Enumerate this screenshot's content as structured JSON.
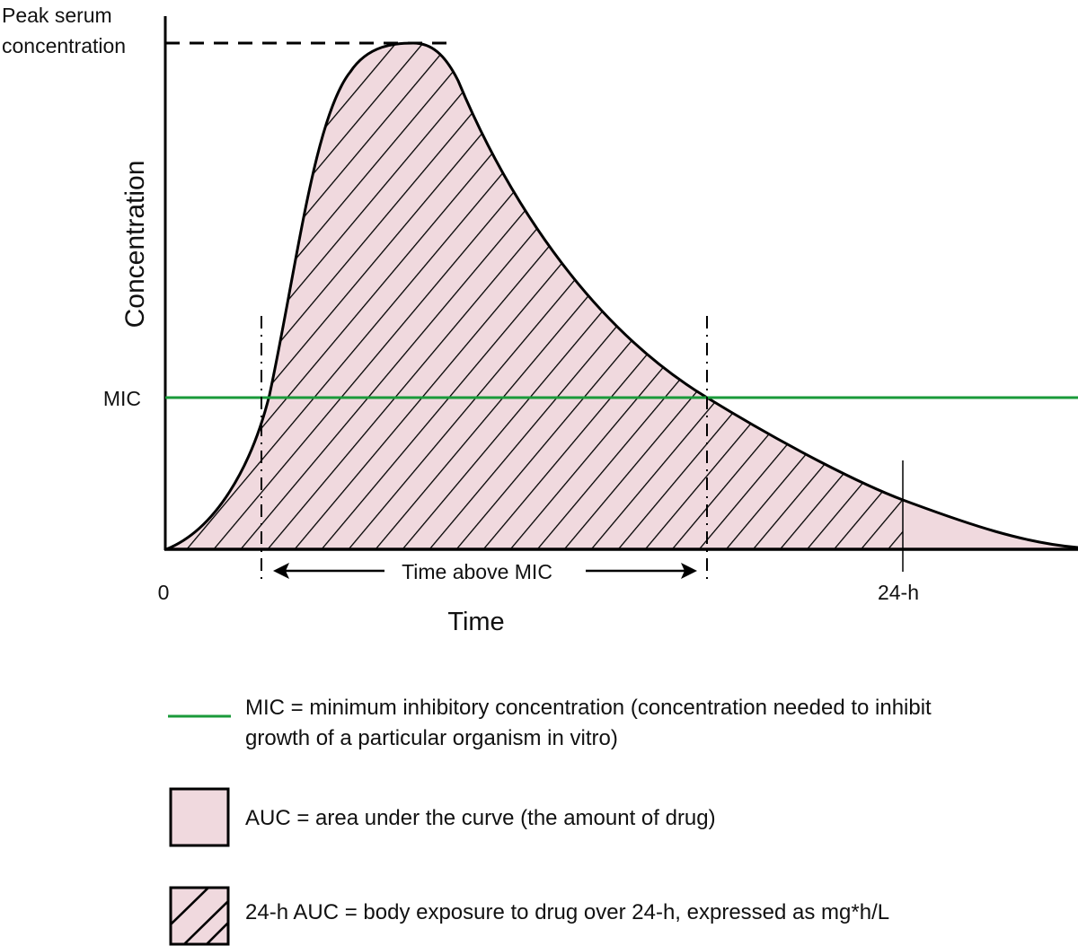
{
  "diagram": {
    "peak_label_line1": "Peak serum",
    "peak_label_line2": "concentration",
    "y_axis_label": "Concentration",
    "x_axis_label": "Time",
    "mic_label": "MIC",
    "origin_label": "0",
    "tick_24h_label": "24-h",
    "time_above_mic_label": "Time above MIC"
  },
  "colors": {
    "auc_fill": "#f0d9de",
    "mic_line": "#1a9a3a",
    "stroke": "#000000"
  },
  "legend": [
    {
      "symbol": "green-line",
      "text_line1": "MIC = minimum inhibitory concentration (concentration needed to inhibit",
      "text_line2": "growth of a particular organism in vitro)"
    },
    {
      "symbol": "pink-box",
      "text_line1": "AUC = area under the curve (the amount of drug)"
    },
    {
      "symbol": "hatched-pink-box",
      "text_line1": "24-h AUC = body exposure to drug over 24-h, expressed as mg*h/L"
    }
  ]
}
